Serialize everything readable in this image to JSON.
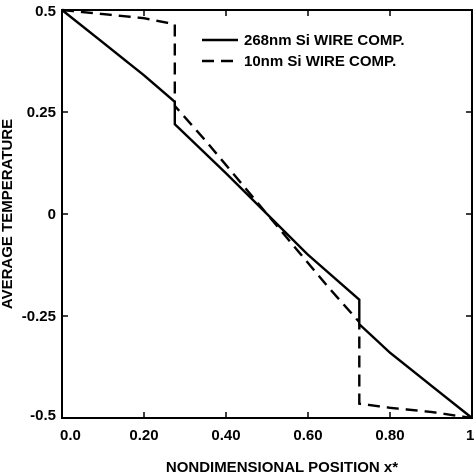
{
  "chart_data": {
    "type": "line",
    "title": "",
    "xlabel": "NONDIMENSIONAL POSITION x*",
    "ylabel": "AVERAGE TEMPERATURE",
    "xlim": [
      0,
      1
    ],
    "ylim": [
      -0.5,
      0.5
    ],
    "x_ticks": [
      {
        "v": 0.0,
        "label": "0.0"
      },
      {
        "v": 0.2,
        "label": "0.20"
      },
      {
        "v": 0.4,
        "label": "0.40"
      },
      {
        "v": 0.6,
        "label": "0.60"
      },
      {
        "v": 0.8,
        "label": "0.80"
      },
      {
        "v": 1.0,
        "label": "1."
      }
    ],
    "y_ticks": [
      {
        "v": 0.5,
        "label": "0.5"
      },
      {
        "v": 0.25,
        "label": "0.25"
      },
      {
        "v": 0.0,
        "label": "0"
      },
      {
        "v": -0.25,
        "label": "-0.25"
      },
      {
        "v": -0.5,
        "label": "-0.5"
      }
    ],
    "grid": false,
    "legend_position": "top-right",
    "series": [
      {
        "name": "268nm Si WIRE COMP.",
        "style": "solid",
        "x": [
          0.0,
          0.1,
          0.2,
          0.275,
          0.275,
          0.4,
          0.5,
          0.6,
          0.725,
          0.725,
          0.8,
          0.9,
          1.0
        ],
        "y": [
          0.5,
          0.42,
          0.34,
          0.275,
          0.22,
          0.1,
          0.0,
          -0.1,
          -0.21,
          -0.27,
          -0.34,
          -0.42,
          -0.5
        ]
      },
      {
        "name": "10nm Si WIRE COMP.",
        "style": "dashed",
        "x": [
          0.0,
          0.1,
          0.2,
          0.275,
          0.275,
          0.35,
          0.45,
          0.5,
          0.55,
          0.65,
          0.725,
          0.725,
          0.8,
          0.9,
          1.0
        ],
        "y": [
          0.5,
          0.49,
          0.48,
          0.465,
          0.265,
          0.18,
          0.06,
          0.0,
          -0.06,
          -0.18,
          -0.265,
          -0.465,
          -0.475,
          -0.485,
          -0.5
        ]
      }
    ]
  }
}
